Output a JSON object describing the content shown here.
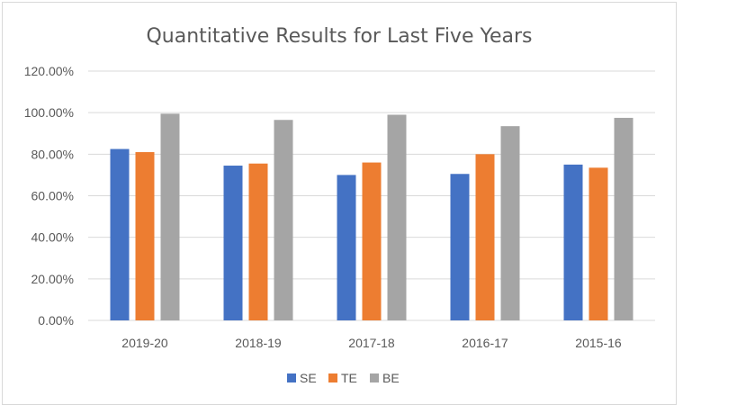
{
  "chart_data": {
    "type": "bar",
    "title": "Quantitative Results for Last Five Years",
    "xlabel": "",
    "ylabel": "",
    "categories": [
      "2019-20",
      "2018-19",
      "2017-18",
      "2016-17",
      "2015-16"
    ],
    "series": [
      {
        "name": "SE",
        "color": "#4472C4",
        "values": [
          82.5,
          74.5,
          70.0,
          70.5,
          75.0
        ]
      },
      {
        "name": "TE",
        "color": "#ED7D31",
        "values": [
          81.0,
          75.5,
          76.0,
          80.0,
          73.5
        ]
      },
      {
        "name": "BE",
        "color": "#A5A5A5",
        "values": [
          99.5,
          96.5,
          99.0,
          93.5,
          97.5
        ]
      }
    ],
    "ylim": [
      0,
      120
    ],
    "y_ticks": [
      "0.00%",
      "20.00%",
      "40.00%",
      "60.00%",
      "80.00%",
      "100.00%",
      "120.00%"
    ],
    "grid": true,
    "gridline_color": "#d9d9d9",
    "legend_position": "bottom"
  }
}
